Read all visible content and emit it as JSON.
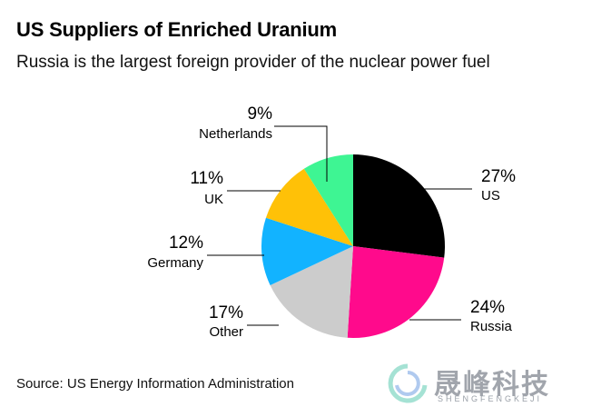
{
  "header": {
    "title": "US Suppliers of Enriched Uranium",
    "subtitle": "Russia is the largest foreign provider of the nuclear power fuel"
  },
  "footer": {
    "source": "Source: US Energy Information Administration"
  },
  "watermark": {
    "text": "晟峰科技",
    "sub": "SHENGFENGKEJI"
  },
  "chart_data": {
    "type": "pie",
    "slices": [
      {
        "name": "US",
        "value": 27,
        "label": "27%",
        "color": "#000000"
      },
      {
        "name": "Russia",
        "value": 24,
        "label": "24%",
        "color": "#ff0a8c"
      },
      {
        "name": "Other",
        "value": 17,
        "label": "17%",
        "color": "#cccccc"
      },
      {
        "name": "Germany",
        "value": 12,
        "label": "12%",
        "color": "#12b3ff"
      },
      {
        "name": "UK",
        "value": 11,
        "label": "11%",
        "color": "#ffc107"
      },
      {
        "name": "Netherlands",
        "value": 9,
        "label": "9%",
        "color": "#3ef593"
      }
    ]
  }
}
